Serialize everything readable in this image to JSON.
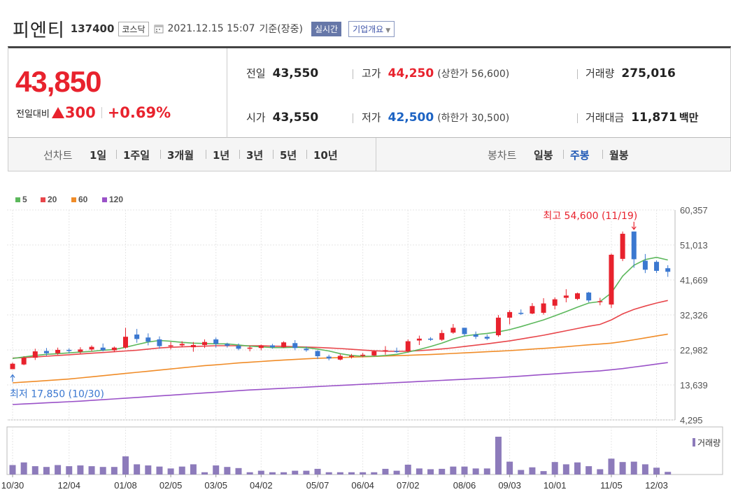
{
  "header": {
    "name": "피엔티",
    "code": "137400",
    "market": "코스닥",
    "datetime": "2021.12.15 15:07",
    "basis": "기준(장중)",
    "realtime": "실시간",
    "company_info": "기업개요"
  },
  "quote": {
    "price": "43,850",
    "change_label": "전일대비",
    "change": "300",
    "change_pct": "+0.69%",
    "prev_close": {
      "label": "전일",
      "value": "43,550"
    },
    "open": {
      "label": "시가",
      "value": "43,550"
    },
    "high": {
      "label": "고가",
      "value": "44,250",
      "limit": "(상한가 56,600)"
    },
    "low": {
      "label": "저가",
      "value": "42,500",
      "limit": "(하한가 30,500)"
    },
    "volume": {
      "label": "거래량",
      "value": "275,016"
    },
    "amount": {
      "label": "거래대금",
      "value": "11,871",
      "unit": "백만"
    }
  },
  "periods": {
    "line_label": "선차트",
    "line_items": [
      "1일",
      "1주일",
      "3개월",
      "1년",
      "3년",
      "5년",
      "10년"
    ],
    "candle_label": "봉차트",
    "candle_items": [
      "일봉",
      "주봉",
      "월봉"
    ],
    "candle_selected": 1
  },
  "colors": {
    "up": "#e8222d",
    "down": "#3b78d0",
    "ma5": "#5cb85c",
    "ma20": "#e8464b",
    "ma60": "#f08c28",
    "ma120": "#9a52c8",
    "volume": "#8d7bbb"
  },
  "chart_data": {
    "type": "candlestick",
    "legend": [
      {
        "name": "5",
        "color": "#5cb85c"
      },
      {
        "name": "20",
        "color": "#e8464b"
      },
      {
        "name": "60",
        "color": "#f08c28"
      },
      {
        "name": "120",
        "color": "#9a52c8"
      }
    ],
    "y_ticks": [
      "60,357",
      "51,013",
      "41,669",
      "32,326",
      "22,982",
      "13,639",
      "4,295"
    ],
    "ylim": [
      4295,
      60357
    ],
    "x_labels": [
      {
        "i": 0,
        "label": "10/30"
      },
      {
        "i": 5,
        "label": "12/04"
      },
      {
        "i": 10,
        "label": "01/08"
      },
      {
        "i": 14,
        "label": "02/05"
      },
      {
        "i": 18,
        "label": "03/05"
      },
      {
        "i": 22,
        "label": "04/02"
      },
      {
        "i": 27,
        "label": "05/07"
      },
      {
        "i": 31,
        "label": "06/04"
      },
      {
        "i": 35,
        "label": "07/02"
      },
      {
        "i": 40,
        "label": "08/06"
      },
      {
        "i": 44,
        "label": "09/03"
      },
      {
        "i": 48,
        "label": "10/01"
      },
      {
        "i": 53,
        "label": "11/05"
      },
      {
        "i": 57,
        "label": "12/03"
      }
    ],
    "annotations": {
      "high": {
        "text": "최고 54,600 (11/19)",
        "i": 55,
        "value": 54600
      },
      "low": {
        "text": "최저 17,850 (10/30)",
        "i": 0,
        "value": 17850
      }
    },
    "volume_label": "거래량",
    "candles": [
      [
        17850,
        19600,
        17850,
        19300
      ],
      [
        19100,
        21300,
        18900,
        20900
      ],
      [
        20900,
        23300,
        20300,
        22600
      ],
      [
        22700,
        23500,
        21400,
        22100
      ],
      [
        22100,
        23600,
        21700,
        23000
      ],
      [
        23000,
        23400,
        22100,
        22700
      ],
      [
        22500,
        23700,
        21900,
        23100
      ],
      [
        23100,
        24200,
        22600,
        23800
      ],
      [
        23600,
        24700,
        22600,
        22900
      ],
      [
        22900,
        23900,
        22400,
        23600
      ],
      [
        23600,
        28900,
        23300,
        26500
      ],
      [
        27100,
        28600,
        24900,
        25900
      ],
      [
        26300,
        27400,
        24200,
        25200
      ],
      [
        25800,
        26600,
        23300,
        24000
      ],
      [
        24100,
        25100,
        23100,
        24200
      ],
      [
        24200,
        25300,
        23700,
        24600
      ],
      [
        23700,
        25100,
        22500,
        24300
      ],
      [
        24300,
        25800,
        23500,
        25100
      ],
      [
        25800,
        26300,
        23600,
        24600
      ],
      [
        24600,
        24900,
        23600,
        24100
      ],
      [
        24100,
        24700,
        22900,
        23300
      ],
      [
        23300,
        24100,
        22600,
        23600
      ],
      [
        23500,
        24400,
        22900,
        24200
      ],
      [
        24200,
        24600,
        23300,
        23700
      ],
      [
        23700,
        25300,
        23500,
        25000
      ],
      [
        24800,
        25600,
        22900,
        23500
      ],
      [
        23300,
        23900,
        22500,
        22900
      ],
      [
        22700,
        22900,
        20600,
        21300
      ],
      [
        21200,
        21700,
        20200,
        20700
      ],
      [
        20400,
        21900,
        20200,
        21400
      ],
      [
        21200,
        21900,
        20700,
        21400
      ],
      [
        21400,
        22200,
        21000,
        21700
      ],
      [
        21500,
        22900,
        21300,
        22600
      ],
      [
        22600,
        24000,
        21700,
        22900
      ],
      [
        22700,
        23600,
        22200,
        22500
      ],
      [
        22600,
        25800,
        22300,
        25300
      ],
      [
        25500,
        26800,
        24300,
        26000
      ],
      [
        26000,
        26400,
        25400,
        25700
      ],
      [
        25700,
        28300,
        25400,
        27500
      ],
      [
        27600,
        29900,
        27300,
        28900
      ],
      [
        28900,
        28900,
        26700,
        27200
      ],
      [
        27100,
        27900,
        25900,
        26500
      ],
      [
        26500,
        27100,
        25600,
        26000
      ],
      [
        26900,
        32300,
        26500,
        31600
      ],
      [
        31600,
        33600,
        29800,
        33100
      ],
      [
        32900,
        33800,
        32300,
        32600
      ],
      [
        32700,
        35500,
        32500,
        34700
      ],
      [
        32900,
        36800,
        32400,
        35400
      ],
      [
        34800,
        37000,
        33800,
        36500
      ],
      [
        36900,
        39200,
        35700,
        37500
      ],
      [
        36600,
        38300,
        36300,
        38100
      ],
      [
        38300,
        38500,
        35700,
        36200
      ],
      [
        35900,
        36900,
        34900,
        36000
      ],
      [
        35100,
        48700,
        34200,
        48400
      ],
      [
        47300,
        54600,
        46700,
        54000
      ],
      [
        54600,
        54600,
        44900,
        47200
      ],
      [
        46800,
        48600,
        43500,
        44400
      ],
      [
        46500,
        46900,
        43500,
        44100
      ],
      [
        44800,
        45600,
        42500,
        43850
      ]
    ],
    "ma5": [
      20700,
      21100,
      21500,
      21800,
      22000,
      22200,
      22400,
      22600,
      22900,
      23100,
      23700,
      24400,
      25100,
      25500,
      25300,
      25000,
      24800,
      24700,
      24600,
      24600,
      24300,
      24000,
      23800,
      23600,
      23600,
      23700,
      23600,
      23200,
      22700,
      22000,
      21500,
      21300,
      21300,
      21500,
      21800,
      22400,
      23100,
      23900,
      24800,
      25900,
      26700,
      27100,
      27400,
      27800,
      28400,
      29200,
      30100,
      31000,
      32100,
      33200,
      34400,
      35500,
      35900,
      38200,
      42700,
      45600,
      47100,
      47700,
      47000
    ],
    "ma20": [
      20800,
      20950,
      21100,
      21300,
      21500,
      21700,
      21900,
      22100,
      22300,
      22500,
      22700,
      22900,
      23200,
      23500,
      23700,
      23800,
      23900,
      24000,
      24100,
      24100,
      24100,
      24100,
      24100,
      24000,
      23950,
      23850,
      23750,
      23650,
      23500,
      23350,
      23150,
      22950,
      22750,
      22650,
      22600,
      22650,
      22800,
      23000,
      23250,
      23550,
      23900,
      24250,
      24600,
      25000,
      25400,
      25900,
      26400,
      26900,
      27500,
      28100,
      28700,
      29300,
      29800,
      31000,
      32600,
      33800,
      34700,
      35500,
      36200
    ],
    "ma60": [
      14200,
      14400,
      14600,
      14800,
      15000,
      15200,
      15500,
      15800,
      16100,
      16400,
      16700,
      17000,
      17300,
      17600,
      17900,
      18200,
      18500,
      18800,
      19000,
      19250,
      19500,
      19700,
      19900,
      20100,
      20300,
      20450,
      20600,
      20750,
      20850,
      20950,
      21050,
      21150,
      21250,
      21350,
      21450,
      21550,
      21650,
      21750,
      21900,
      22050,
      22200,
      22350,
      22500,
      22650,
      22800,
      23000,
      23200,
      23400,
      23600,
      23850,
      24100,
      24350,
      24550,
      24800,
      25200,
      25700,
      26200,
      26700,
      27200
    ],
    "ma120": [
      8400,
      8550,
      8700,
      8850,
      9000,
      9150,
      9300,
      9500,
      9700,
      9900,
      10100,
      10300,
      10500,
      10700,
      10900,
      11100,
      11300,
      11500,
      11700,
      11900,
      12100,
      12300,
      12450,
      12600,
      12750,
      12900,
      13050,
      13200,
      13350,
      13500,
      13650,
      13800,
      13950,
      14100,
      14250,
      14400,
      14550,
      14700,
      14850,
      15000,
      15150,
      15300,
      15450,
      15600,
      15800,
      16000,
      16200,
      16400,
      16600,
      16800,
      17000,
      17200,
      17400,
      17700,
      18000,
      18400,
      18800,
      19200,
      19600
    ],
    "volume": [
      0.25,
      0.32,
      0.22,
      0.2,
      0.25,
      0.22,
      0.24,
      0.22,
      0.2,
      0.2,
      0.48,
      0.27,
      0.24,
      0.21,
      0.16,
      0.21,
      0.27,
      0.06,
      0.24,
      0.2,
      0.17,
      0.06,
      0.1,
      0.06,
      0.06,
      0.1,
      0.1,
      0.15,
      0.06,
      0.06,
      0.06,
      0.06,
      0.06,
      0.15,
      0.1,
      0.26,
      0.16,
      0.14,
      0.15,
      0.21,
      0.21,
      0.16,
      0.16,
      1.0,
      0.34,
      0.12,
      0.19,
      0.09,
      0.33,
      0.27,
      0.32,
      0.22,
      0.14,
      0.42,
      0.33,
      0.34,
      0.27,
      0.18,
      0.07
    ]
  }
}
